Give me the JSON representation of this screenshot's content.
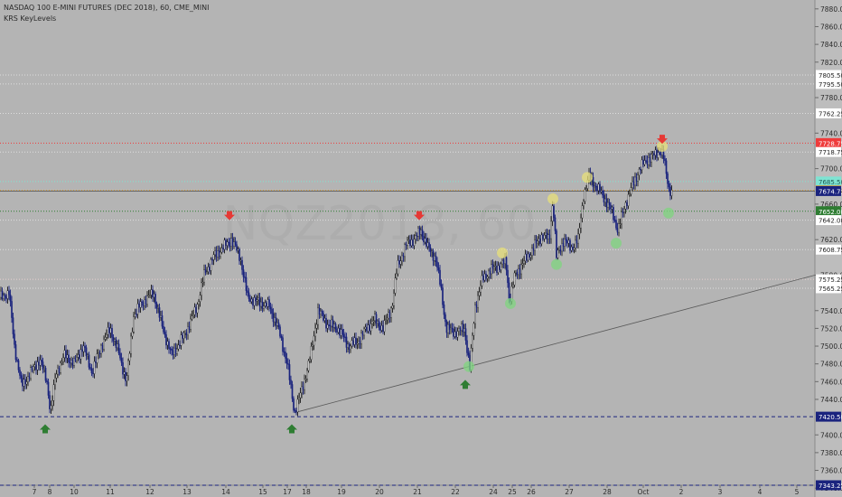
{
  "chart_data": {
    "type": "candlestick",
    "title": "NASDAQ 100 E-MINI FUTURES (DEC 2018), 60, CME_MINI",
    "indicator": "KRS KeyLevels",
    "watermark": "NQZ2018, 60",
    "ylim": [
      7330,
      7890
    ],
    "yticks": [
      7880,
      7860,
      7840,
      7820,
      7780,
      7740,
      7700,
      7660,
      7620,
      7580,
      7540,
      7520,
      7500,
      7480,
      7460,
      7440,
      7400,
      7380,
      7360,
      7340
    ],
    "xticks": [
      "7",
      "8",
      "10",
      "11",
      "12",
      "13",
      "14",
      "15",
      "17",
      "18",
      "19",
      "20",
      "21",
      "22",
      "24",
      "25",
      "26",
      "27",
      "28",
      "Oct",
      "2",
      "3",
      "4",
      "5"
    ],
    "price_line": 7674.75,
    "levels": [
      {
        "value": 7805.5,
        "label": "7805.50",
        "color": "#dedede",
        "style": "dotted"
      },
      {
        "value": 7795.5,
        "label": "7795.50",
        "color": "#dedede",
        "style": "dotted"
      },
      {
        "value": 7762.25,
        "label": "7762.25",
        "color": "#dedede",
        "style": "dotted"
      },
      {
        "value": 7728.75,
        "label": "7728.75",
        "color": "#ef3b3b",
        "style": "dotted"
      },
      {
        "value": 7718.75,
        "label": "7718.75",
        "color": "#dedede",
        "style": "dotted"
      },
      {
        "value": 7685.5,
        "label": "7685.50",
        "color": "#7fe3d2",
        "style": "dotted"
      },
      {
        "value": 7675.5,
        "label": "7675.50",
        "color": "#e0a030",
        "style": "dotted"
      },
      {
        "value": 7652.0,
        "label": "7652.00",
        "color": "#2e7d32",
        "style": "dotted"
      },
      {
        "value": 7642.0,
        "label": "7642.00",
        "color": "#dedede",
        "style": "dotted"
      },
      {
        "value": 7608.75,
        "label": "7608.75",
        "color": "#dedede",
        "style": "dotted"
      },
      {
        "value": 7575.25,
        "label": "7575.25",
        "color": "#e7d0d0",
        "style": "dotted"
      },
      {
        "value": 7565.25,
        "label": "7565.25",
        "color": "#dedede",
        "style": "dotted"
      },
      {
        "value": 7420.5,
        "label": "7420.50",
        "color": "#1a237e",
        "style": "dashed"
      },
      {
        "value": 7343.25,
        "label": "7343.25",
        "color": "#1a237e",
        "style": "dashed"
      }
    ],
    "price_points": [
      [
        0,
        7555
      ],
      [
        10,
        7560
      ],
      [
        16,
        7500
      ],
      [
        24,
        7455
      ],
      [
        34,
        7470
      ],
      [
        44,
        7485
      ],
      [
        52,
        7460
      ],
      [
        56,
        7425
      ],
      [
        62,
        7470
      ],
      [
        72,
        7490
      ],
      [
        82,
        7480
      ],
      [
        92,
        7500
      ],
      [
        102,
        7470
      ],
      [
        112,
        7500
      ],
      [
        122,
        7520
      ],
      [
        132,
        7490
      ],
      [
        140,
        7460
      ],
      [
        148,
        7535
      ],
      [
        158,
        7550
      ],
      [
        170,
        7560
      ],
      [
        180,
        7520
      ],
      [
        190,
        7490
      ],
      [
        200,
        7505
      ],
      [
        210,
        7525
      ],
      [
        218,
        7545
      ],
      [
        226,
        7580
      ],
      [
        236,
        7600
      ],
      [
        246,
        7610
      ],
      [
        256,
        7620
      ],
      [
        266,
        7600
      ],
      [
        274,
        7555
      ],
      [
        284,
        7550
      ],
      [
        298,
        7545
      ],
      [
        308,
        7520
      ],
      [
        318,
        7480
      ],
      [
        326,
        7425
      ],
      [
        334,
        7450
      ],
      [
        344,
        7490
      ],
      [
        352,
        7540
      ],
      [
        362,
        7525
      ],
      [
        374,
        7520
      ],
      [
        386,
        7500
      ],
      [
        396,
        7505
      ],
      [
        406,
        7520
      ],
      [
        414,
        7530
      ],
      [
        424,
        7520
      ],
      [
        434,
        7545
      ],
      [
        440,
        7590
      ],
      [
        450,
        7615
      ],
      [
        458,
        7620
      ],
      [
        466,
        7630
      ],
      [
        474,
        7610
      ],
      [
        482,
        7600
      ],
      [
        488,
        7565
      ],
      [
        494,
        7520
      ],
      [
        504,
        7515
      ],
      [
        514,
        7520
      ],
      [
        520,
        7475
      ],
      [
        526,
        7545
      ],
      [
        534,
        7575
      ],
      [
        542,
        7585
      ],
      [
        552,
        7590
      ],
      [
        560,
        7595
      ],
      [
        564,
        7550
      ],
      [
        570,
        7580
      ],
      [
        580,
        7595
      ],
      [
        590,
        7610
      ],
      [
        600,
        7625
      ],
      [
        608,
        7620
      ],
      [
        612,
        7665
      ],
      [
        616,
        7600
      ],
      [
        624,
        7620
      ],
      [
        632,
        7610
      ],
      [
        640,
        7620
      ],
      [
        646,
        7670
      ],
      [
        652,
        7690
      ],
      [
        660,
        7680
      ],
      [
        670,
        7665
      ],
      [
        678,
        7650
      ],
      [
        684,
        7630
      ],
      [
        692,
        7660
      ],
      [
        700,
        7680
      ],
      [
        708,
        7700
      ],
      [
        716,
        7710
      ],
      [
        724,
        7715
      ],
      [
        730,
        7720
      ],
      [
        734,
        7715
      ],
      [
        740,
        7680
      ],
      [
        744,
        7672
      ]
    ],
    "markers": [
      {
        "type": "down",
        "xpx": 254,
        "price": 7642
      },
      {
        "type": "down",
        "xpx": 464,
        "price": 7642
      },
      {
        "type": "down",
        "xpx": 733,
        "price": 7728
      },
      {
        "type": "up",
        "xpx": 50,
        "price": 7412
      },
      {
        "type": "up",
        "xpx": 323,
        "price": 7412
      },
      {
        "type": "up",
        "xpx": 515,
        "price": 7462
      }
    ],
    "circles": [
      {
        "color": "#e8e07a",
        "xpx": 556,
        "price": 7605
      },
      {
        "color": "#e8e07a",
        "xpx": 612,
        "price": 7666
      },
      {
        "color": "#e8e07a",
        "xpx": 650,
        "price": 7690
      },
      {
        "color": "#e8e07a",
        "xpx": 733,
        "price": 7725
      },
      {
        "color": "#7fd67f",
        "xpx": 519,
        "price": 7477
      },
      {
        "color": "#7fd67f",
        "xpx": 565,
        "price": 7548
      },
      {
        "color": "#7fd67f",
        "xpx": 616,
        "price": 7592
      },
      {
        "color": "#7fd67f",
        "xpx": 682,
        "price": 7616
      },
      {
        "color": "#7fd67f",
        "xpx": 740,
        "price": 7650
      }
    ]
  }
}
